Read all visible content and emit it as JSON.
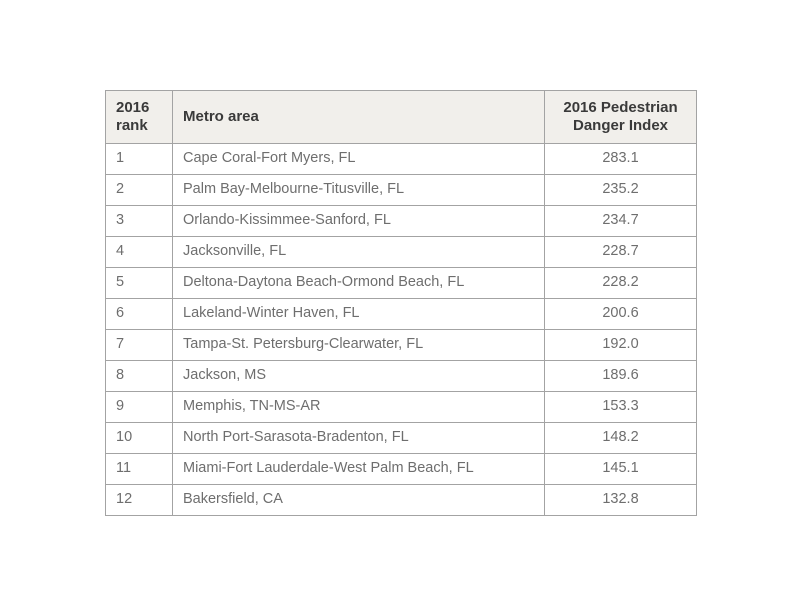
{
  "table": {
    "columns": [
      {
        "label": "2016 rank"
      },
      {
        "label": "Metro area"
      },
      {
        "label": "2016 Pedestrian Danger Index"
      }
    ],
    "rows": [
      {
        "rank": "1",
        "metro": "Cape Coral-Fort Myers, FL",
        "index": "283.1"
      },
      {
        "rank": "2",
        "metro": "Palm Bay-Melbourne-Titusville, FL",
        "index": "235.2"
      },
      {
        "rank": "3",
        "metro": "Orlando-Kissimmee-Sanford, FL",
        "index": "234.7"
      },
      {
        "rank": "4",
        "metro": "Jacksonville, FL",
        "index": "228.7"
      },
      {
        "rank": "5",
        "metro": "Deltona-Daytona Beach-Ormond Beach, FL",
        "index": "228.2"
      },
      {
        "rank": "6",
        "metro": "Lakeland-Winter Haven, FL",
        "index": "200.6"
      },
      {
        "rank": "7",
        "metro": "Tampa-St. Petersburg-Clearwater, FL",
        "index": "192.0"
      },
      {
        "rank": "8",
        "metro": "Jackson, MS",
        "index": "189.6"
      },
      {
        "rank": "9",
        "metro": "Memphis, TN-MS-AR",
        "index": "153.3"
      },
      {
        "rank": "10",
        "metro": "North Port-Sarasota-Bradenton, FL",
        "index": "148.2"
      },
      {
        "rank": "11",
        "metro": "Miami-Fort Lauderdale-West Palm Beach, FL",
        "index": "145.1"
      },
      {
        "rank": "12",
        "metro": "Bakersfield, CA",
        "index": "132.8"
      }
    ]
  },
  "colors": {
    "header_background": "#f1efeb",
    "header_text": "#3a3a3a",
    "body_text": "#6e6e6e",
    "border": "#a3a3a3",
    "page_background": "#ffffff"
  }
}
